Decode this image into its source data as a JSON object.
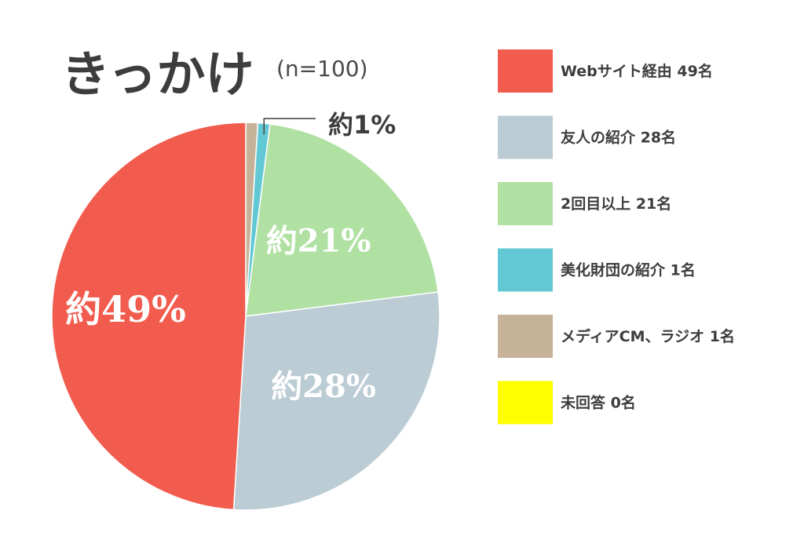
{
  "chart_data": {
    "type": "pie",
    "title": "きっかけ",
    "subtitle": "(n=100)",
    "legend_position": "right",
    "slices": [
      {
        "label": "Webサイト経由 49名",
        "value": 49,
        "color": "#f25c4e",
        "data_label": "約49%"
      },
      {
        "label": "友人の紹介 28名",
        "value": 28,
        "color": "#bcccd5",
        "data_label": "約28%"
      },
      {
        "label": "2回目以上 21名",
        "value": 21,
        "color": "#b0e1a3",
        "data_label": "約21%"
      },
      {
        "label": "美化財団の紹介 1名",
        "value": 1,
        "color": "#62c8d4",
        "data_label": "約1%"
      },
      {
        "label": "メディアCM、ラジオ 1名",
        "value": 1,
        "color": "#c6b299",
        "data_label": ""
      },
      {
        "label": "未回答 0名",
        "value": 0,
        "color": "#ffff00",
        "data_label": ""
      }
    ]
  }
}
